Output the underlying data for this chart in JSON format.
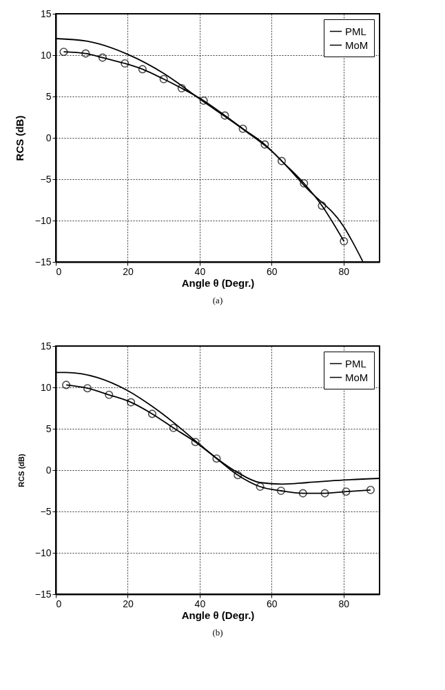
{
  "chart_data": [
    {
      "type": "line",
      "xlabel": "Angle θ (Degr.)",
      "ylabel": "RCS (dB)",
      "annotations": [
        "(a)"
      ],
      "xlim": [
        0,
        90
      ],
      "ylim": [
        -15,
        15
      ],
      "xticks": [
        0,
        20,
        40,
        60,
        80
      ],
      "yticks": [
        -15,
        -10,
        -5,
        0,
        5,
        10,
        15
      ],
      "grid": true,
      "legend": "top right",
      "series": [
        {
          "name": "PML",
          "color": "#000000",
          "marker": "none",
          "x": [
            0,
            8.6,
            20,
            30,
            40,
            52.5,
            60,
            70,
            80,
            85.3
          ],
          "values": [
            12.0,
            11.7,
            10.1,
            7.8,
            4.7,
            0.9,
            -1.6,
            -6.2,
            -10.7,
            -14.9
          ]
        },
        {
          "name": "MoM",
          "color": "#000000",
          "marker": "circle",
          "x": [
            2.2,
            8.3,
            13,
            19.2,
            24.1,
            30,
            35,
            41.1,
            47,
            52,
            58.1,
            62.8,
            69,
            74,
            80.1
          ],
          "values": [
            10.4,
            10.2,
            9.7,
            9.0,
            8.3,
            7.1,
            6.0,
            4.5,
            2.7,
            1.1,
            -0.8,
            -2.8,
            -5.5,
            -8.2,
            -12.5
          ]
        }
      ]
    },
    {
      "type": "line",
      "xlabel": "Angle θ (Degr.)",
      "ylabel": "RCS (dB)",
      "annotations": [
        "(b)"
      ],
      "xlim": [
        0,
        90
      ],
      "ylim": [
        -15,
        15
      ],
      "xticks": [
        0,
        20,
        40,
        60,
        80
      ],
      "yticks": [
        -15,
        -10,
        -5,
        0,
        5,
        10,
        15
      ],
      "grid": true,
      "legend": "top right",
      "series": [
        {
          "name": "PML",
          "color": "#000000",
          "marker": "none",
          "x": [
            0,
            2.8,
            11.5,
            20,
            26.8,
            32.6,
            40,
            46.7,
            50.6,
            56.7,
            63.1,
            70,
            80,
            90
          ],
          "values": [
            11.8,
            11.8,
            11.2,
            9.6,
            7.7,
            5.8,
            3.1,
            0.8,
            -0.3,
            -1.5,
            -1.7,
            -1.5,
            -1.2,
            -1.0
          ]
        },
        {
          "name": "MoM",
          "color": "#000000",
          "marker": "circle",
          "x": [
            2.9,
            8.8,
            14.8,
            20.9,
            26.8,
            32.7,
            38.8,
            44.7,
            50.6,
            56.8,
            62.6,
            68.7,
            74.8,
            80.7,
            87.5
          ],
          "values": [
            10.3,
            9.9,
            9.1,
            8.2,
            6.8,
            5.1,
            3.4,
            1.4,
            -0.6,
            -2.0,
            -2.5,
            -2.8,
            -2.8,
            -2.6,
            -2.4
          ]
        }
      ]
    }
  ]
}
